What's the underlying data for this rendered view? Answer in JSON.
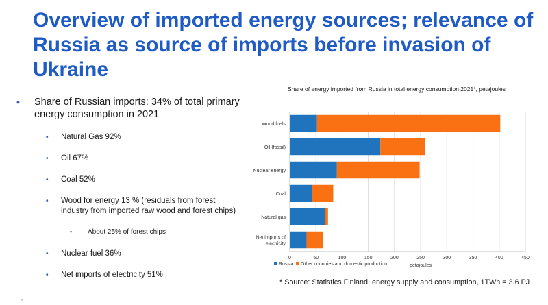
{
  "slide": {
    "title": "Overview of imported energy sources; relevance of Russia as source of imports before invasion of Ukraine",
    "source_note": "* Source: Statistics Finland, energy supply and consumption, 1TWh = 3.6 PJ",
    "page_marker": "6"
  },
  "bullets": {
    "main": "Share of Russian imports: 34% of total primary energy consumption in 2021",
    "items": [
      "Natural Gas 92%",
      "Oil 67%",
      "Coal 52%",
      "Wood for energy 13 % (residuals from forest industry from imported raw wood and forest chips)",
      "About 25% of forest chips",
      "Nuclear fuel 36%",
      "Net imports of electricity 51%"
    ]
  },
  "colors": {
    "title": "#1f5bc5",
    "russia": "#1f74bd",
    "other": "#f97112",
    "bullet": "#2a5fb9"
  },
  "chart_data": {
    "type": "bar",
    "orientation": "horizontal",
    "stacked": true,
    "title": "Share of energy imported from Russia in total energy consumption 2021*, petajoules",
    "xlabel": "petajoules",
    "ylabel": "",
    "xlim": [
      0,
      450
    ],
    "xticks": [
      0,
      50,
      100,
      150,
      200,
      250,
      300,
      350,
      400,
      450
    ],
    "grid": true,
    "legend": "bottom-left",
    "categories": [
      "Wood fuels",
      "Oil (fossil)",
      "Nuclear energy",
      "Coal",
      "Natural gas",
      "Net imports of electricity"
    ],
    "series": [
      {
        "name": "Russia",
        "values": [
          52,
          173,
          90,
          43,
          67,
          32
        ]
      },
      {
        "name": "Other countries and domestic production",
        "values": [
          350,
          85,
          158,
          40,
          6,
          32
        ]
      }
    ]
  }
}
